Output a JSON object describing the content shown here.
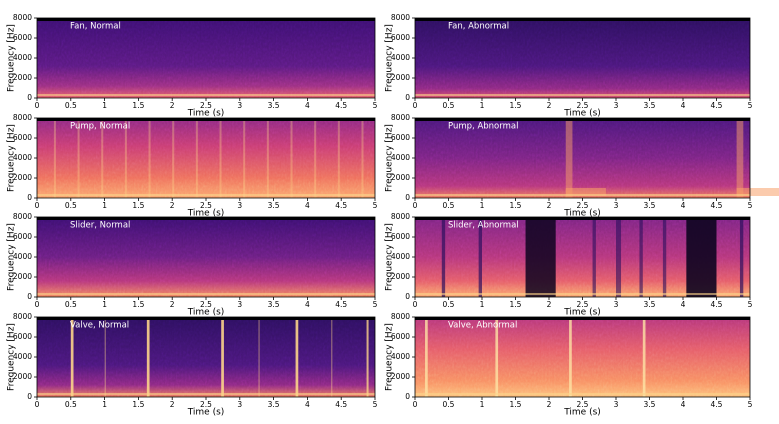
{
  "chart_data": [
    {
      "type": "spectrogram",
      "title": "Fan, Normal",
      "xlabel": "Time (s)",
      "ylabel": "Frequency [Hz]",
      "xlim": [
        0,
        5
      ],
      "ylim": [
        0,
        8000
      ],
      "xticks": [
        0,
        0.5,
        1,
        1.5,
        2,
        2.5,
        3,
        3.5,
        4,
        4.5,
        5
      ],
      "yticks": [
        0,
        2000,
        4000,
        6000,
        8000
      ]
    },
    {
      "type": "spectrogram",
      "title": "Fan, Abnormal",
      "xlabel": "Time (s)",
      "ylabel": "Frequency [Hz]",
      "xlim": [
        0,
        5
      ],
      "ylim": [
        0,
        8000
      ],
      "xticks": [
        0,
        0.5,
        1,
        1.5,
        2,
        2.5,
        3,
        3.5,
        4,
        4.5,
        5
      ],
      "yticks": [
        0,
        2000,
        4000,
        6000,
        8000
      ]
    },
    {
      "type": "spectrogram",
      "title": "Pump, Normal",
      "xlabel": "Time (s)",
      "ylabel": "Frequency [Hz]",
      "xlim": [
        0,
        5
      ],
      "ylim": [
        0,
        8000
      ],
      "xticks": [
        0,
        0.5,
        1,
        1.5,
        2,
        2.5,
        3,
        3.5,
        4,
        4.5,
        5
      ],
      "yticks": [
        0,
        2000,
        4000,
        6000,
        8000
      ]
    },
    {
      "type": "spectrogram",
      "title": "Pump, Abnormal",
      "xlabel": "Time (s)",
      "ylabel": "Frequency [Hz]",
      "xlim": [
        0,
        5
      ],
      "ylim": [
        0,
        8000
      ],
      "xticks": [
        0,
        0.5,
        1,
        1.5,
        2,
        2.5,
        3,
        3.5,
        4,
        4.5,
        5
      ],
      "yticks": [
        0,
        2000,
        4000,
        6000,
        8000
      ]
    },
    {
      "type": "spectrogram",
      "title": "Slider, Normal",
      "xlabel": "Time (s)",
      "ylabel": "Frequency [Hz]",
      "xlim": [
        0,
        5
      ],
      "ylim": [
        0,
        8000
      ],
      "xticks": [
        0,
        0.5,
        1,
        1.5,
        2,
        2.5,
        3,
        3.5,
        4,
        4.5,
        5
      ],
      "yticks": [
        0,
        2000,
        4000,
        6000,
        8000
      ]
    },
    {
      "type": "spectrogram",
      "title": "Slider, Abnormal",
      "xlabel": "Time (s)",
      "ylabel": "Frequency [Hz]",
      "xlim": [
        0,
        5
      ],
      "ylim": [
        0,
        8000
      ],
      "xticks": [
        0,
        0.5,
        1,
        1.5,
        2,
        2.5,
        3,
        3.5,
        4,
        4.5,
        5
      ],
      "yticks": [
        0,
        2000,
        4000,
        6000,
        8000
      ]
    },
    {
      "type": "spectrogram",
      "title": "Valve, Normal",
      "xlabel": "Time (s)",
      "ylabel": "Frequency [Hz]",
      "xlim": [
        0,
        5
      ],
      "ylim": [
        0,
        8000
      ],
      "xticks": [
        0,
        0.5,
        1,
        1.5,
        2,
        2.5,
        3,
        3.5,
        4,
        4.5,
        5
      ],
      "yticks": [
        0,
        2000,
        4000,
        6000,
        8000
      ]
    },
    {
      "type": "spectrogram",
      "title": "Valve, Abnormal",
      "xlabel": "Time (s)",
      "ylabel": "Frequency [Hz]",
      "xlim": [
        0,
        5
      ],
      "ylim": [
        0,
        8000
      ],
      "xticks": [
        0,
        0.5,
        1,
        1.5,
        2,
        2.5,
        3,
        3.5,
        4,
        4.5,
        5
      ],
      "yticks": [
        0,
        2000,
        4000,
        6000,
        8000
      ]
    }
  ]
}
